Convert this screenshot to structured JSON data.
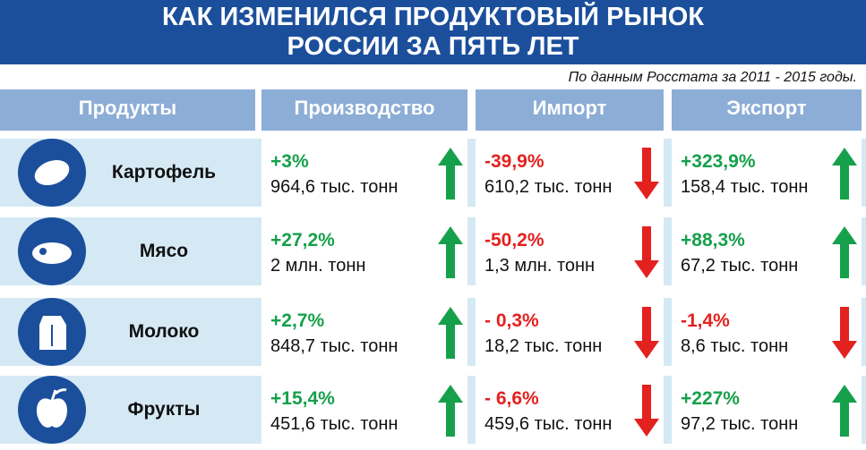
{
  "header": {
    "title": [
      "КАК ИЗМЕНИЛСЯ ПРОДУКТОВЫЙ РЫНОК",
      "РОССИИ ЗА ПЯТЬ ЛЕТ"
    ],
    "source": "По данным Росстата за 2011 - 2015 годы."
  },
  "table": {
    "columns": [
      "Продукты",
      "Производство",
      "Импорт",
      "Экспорт"
    ],
    "rows": [
      {
        "product": "Картофель",
        "cells": [
          {
            "change": "+3%",
            "amount": "964,6 тыс. тонн",
            "direction": "up"
          },
          {
            "change": "-39,9%",
            "amount": "610,2 тыс. тонн",
            "direction": "down"
          },
          {
            "change": "+323,9%",
            "amount": "158,4 тыс. тонн",
            "direction": "up"
          }
        ]
      },
      {
        "product": "Мясо",
        "cells": [
          {
            "change": "+27,2%",
            "amount": "2 млн. тонн",
            "direction": "up"
          },
          {
            "change": "-50,2%",
            "amount": "1,3 млн. тонн",
            "direction": "down"
          },
          {
            "change": "+88,3%",
            "amount": "67,2 тыс. тонн",
            "direction": "up"
          }
        ]
      },
      {
        "product": "Молоко",
        "cells": [
          {
            "change": "+2,7%",
            "amount": "848,7 тыс. тонн",
            "direction": "up"
          },
          {
            "change": "- 0,3%",
            "amount": "18,2 тыс. тонн",
            "direction": "down"
          },
          {
            "change": "-1,4%",
            "amount": "8,6 тыс. тонн",
            "direction": "down"
          }
        ]
      },
      {
        "product": "Фрукты",
        "cells": [
          {
            "change": "+15,4%",
            "amount": "451,6 тыс. тонн",
            "direction": "up"
          },
          {
            "change": "- 6,6%",
            "amount": "459,6 тыс. тонн",
            "direction": "down"
          },
          {
            "change": "+227%",
            "amount": "97,2 тыс. тонн",
            "direction": "up"
          }
        ]
      }
    ]
  }
}
